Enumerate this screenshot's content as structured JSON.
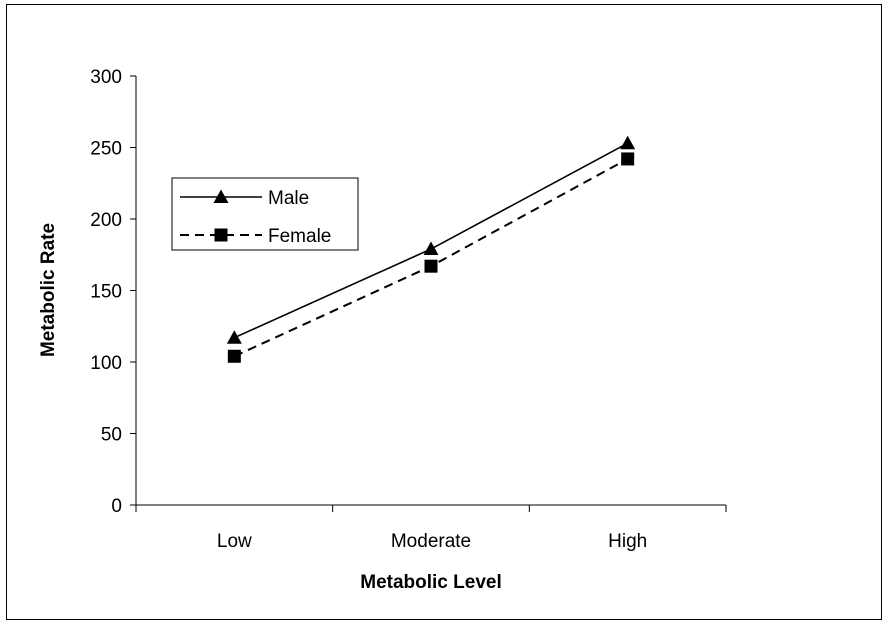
{
  "chart_data": {
    "type": "line",
    "categories": [
      "Low",
      "Moderate",
      "High"
    ],
    "series": [
      {
        "name": "Male",
        "values": [
          117,
          179,
          253
        ],
        "line_style": "solid",
        "marker": "triangle",
        "color": "#000000"
      },
      {
        "name": "Female",
        "values": [
          104,
          167,
          242
        ],
        "line_style": "dashed",
        "marker": "square",
        "color": "#000000"
      }
    ],
    "xlabel": "Metabolic Level",
    "ylabel": "Metabolic Rate",
    "ylim": [
      0,
      300
    ],
    "yticks": [
      0,
      50,
      100,
      150,
      200,
      250,
      300
    ],
    "grid": false,
    "legend_position": "left"
  }
}
